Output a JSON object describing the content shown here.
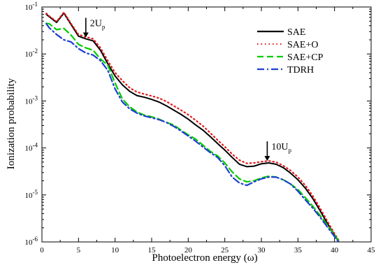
{
  "chart_data": {
    "type": "line",
    "title": "",
    "xlabel": "Photoelectron energy (ω)",
    "ylabel": "Ionization probability",
    "xlim": [
      0,
      45
    ],
    "ylim": [
      1e-06,
      0.1
    ],
    "yscale": "log",
    "x_ticks": [
      0,
      5,
      10,
      15,
      20,
      25,
      30,
      35,
      40,
      45
    ],
    "x_tick_labels": [
      "0",
      "5",
      "10",
      "15",
      "20",
      "25",
      "30",
      "35",
      "40",
      "45"
    ],
    "y_ticks": [
      1e-06,
      1e-05,
      0.0001,
      0.001,
      0.01,
      0.1
    ],
    "y_tick_labels": [
      {
        "base": "10",
        "exp": "-6"
      },
      {
        "base": "10",
        "exp": "-5"
      },
      {
        "base": "10",
        "exp": "-4"
      },
      {
        "base": "10",
        "exp": "-3"
      },
      {
        "base": "10",
        "exp": "-2"
      },
      {
        "base": "10",
        "exp": "-1"
      }
    ],
    "grid": false,
    "legend_position": "top-right",
    "series": [
      {
        "name": "SAE",
        "color": "#000000",
        "dash": "solid",
        "x": [
          0.6,
          1,
          2,
          3,
          4,
          5,
          6,
          7,
          8,
          9,
          10,
          11,
          12,
          13,
          14,
          15,
          16,
          17,
          18,
          19,
          20,
          21,
          22,
          23,
          24,
          25,
          26,
          27,
          28,
          29,
          30,
          31,
          32,
          33,
          34,
          35,
          36,
          37,
          38,
          39,
          40,
          41
        ],
        "y": [
          0.07,
          0.062,
          0.047,
          0.074,
          0.042,
          0.024,
          0.021,
          0.019,
          0.012,
          0.0062,
          0.0034,
          0.0022,
          0.0016,
          0.0013,
          0.0012,
          0.00108,
          0.00095,
          0.00079,
          0.00064,
          0.00052,
          0.00041,
          0.00031,
          0.00024,
          0.000175,
          0.000125,
          9e-05,
          6.3e-05,
          4.5e-05,
          4e-05,
          4.1e-05,
          4.6e-05,
          4.8e-05,
          4.5e-05,
          3.8e-05,
          2.9e-05,
          2.1e-05,
          1.4e-05,
          8.5e-06,
          4.7e-06,
          2.5e-06,
          1.4e-06,
          8e-07
        ]
      },
      {
        "name": "SAE+O",
        "color": "#e41a1c",
        "dash": "dotted",
        "x": [
          0.6,
          1,
          2,
          3,
          4,
          5,
          6,
          7,
          8,
          9,
          10,
          11,
          12,
          13,
          14,
          15,
          16,
          17,
          18,
          19,
          20,
          21,
          22,
          23,
          24,
          25,
          26,
          27,
          28,
          29,
          30,
          31,
          32,
          33,
          34,
          35,
          36,
          37,
          38,
          39,
          40,
          41
        ],
        "y": [
          0.073,
          0.064,
          0.049,
          0.077,
          0.044,
          0.026,
          0.023,
          0.021,
          0.0135,
          0.0072,
          0.004,
          0.0027,
          0.0019,
          0.00155,
          0.0014,
          0.00128,
          0.00115,
          0.00098,
          0.00079,
          0.00064,
          0.00051,
          0.00039,
          0.000295,
          0.00021,
          0.000148,
          0.000106,
          7.4e-05,
          5.5e-05,
          4.7e-05,
          4.8e-05,
          5.1e-05,
          5.3e-05,
          5e-05,
          4.2e-05,
          3.3e-05,
          2.4e-05,
          1.6e-05,
          9.7e-06,
          5.3e-06,
          2.8e-06,
          1.5e-06,
          8.5e-07
        ]
      },
      {
        "name": "SAE+CP",
        "color": "#00cc00",
        "dash": "dashed",
        "x": [
          0.6,
          1,
          2,
          3,
          4,
          5,
          6,
          7,
          8,
          9,
          10,
          11,
          12,
          13,
          14,
          15,
          16,
          17,
          18,
          19,
          20,
          21,
          22,
          23,
          24,
          25,
          26,
          27,
          28,
          29,
          30,
          31,
          32,
          33,
          34,
          35,
          36,
          37,
          38,
          39,
          40,
          41
        ],
        "y": [
          0.045,
          0.044,
          0.033,
          0.035,
          0.025,
          0.016,
          0.0135,
          0.012,
          0.0078,
          0.0058,
          0.0024,
          0.0011,
          0.00075,
          0.00058,
          0.0005,
          0.00046,
          0.00041,
          0.00035,
          0.00031,
          0.00024,
          0.00019,
          0.000155,
          0.000115,
          8.5e-05,
          6.8e-05,
          4.8e-05,
          3.1e-05,
          2.2e-05,
          1.9e-05,
          2e-05,
          2.3e-05,
          2.5e-05,
          2.4e-05,
          2.1e-05,
          1.7e-05,
          1.3e-05,
          8.8e-06,
          5.8e-06,
          3.7e-06,
          2.3e-06,
          1.4e-06,
          8.5e-07
        ]
      },
      {
        "name": "TDRH",
        "color": "#1f3fd0",
        "dash": "dashdot",
        "x": [
          0.6,
          1,
          2,
          3,
          4,
          5,
          6,
          7,
          8,
          9,
          10,
          11,
          12,
          13,
          14,
          15,
          16,
          17,
          18,
          19,
          20,
          21,
          22,
          23,
          24,
          25,
          26,
          27,
          28,
          29,
          30,
          31,
          32,
          33,
          34,
          35,
          36,
          37,
          38,
          39,
          40,
          41
        ],
        "y": [
          0.044,
          0.036,
          0.026,
          0.02,
          0.018,
          0.013,
          0.0105,
          0.0095,
          0.0072,
          0.0045,
          0.0018,
          0.00095,
          0.00068,
          0.00055,
          0.00048,
          0.00044,
          0.0004,
          0.00035,
          0.00029,
          0.00023,
          0.00018,
          0.00014,
          0.000105,
          8e-05,
          6.3e-05,
          4.2e-05,
          2.4e-05,
          1.8e-05,
          1.6e-05,
          1.9e-05,
          2.2e-05,
          2.4e-05,
          2.4e-05,
          2.1e-05,
          1.7e-05,
          1.2e-05,
          7.9e-06,
          5.3e-06,
          3.4e-06,
          2.1e-06,
          1.3e-06,
          8e-07
        ]
      }
    ],
    "annotations": [
      {
        "name": "2up-annotation",
        "x": 6.0,
        "y_tip": 0.021,
        "base": "2U",
        "sub": "p"
      },
      {
        "name": "10up-annotation",
        "x": 30.8,
        "y_tip": 4.95e-05,
        "base": "10U",
        "sub": "p"
      }
    ]
  }
}
